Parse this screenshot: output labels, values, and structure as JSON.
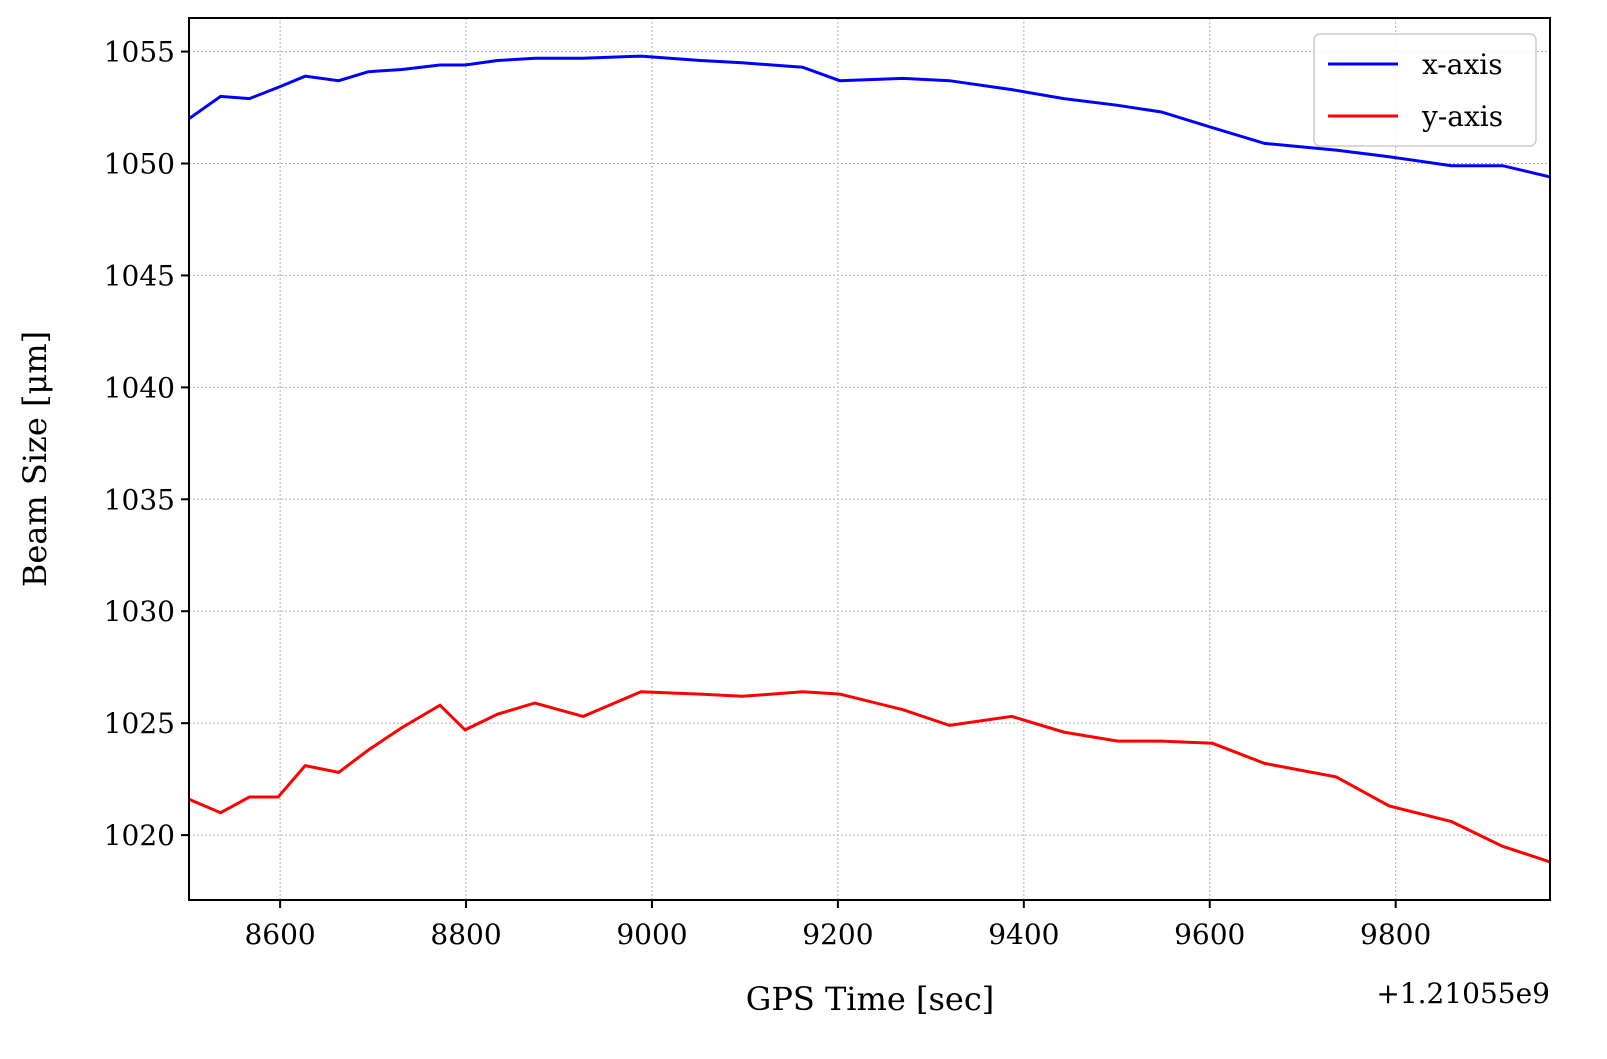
{
  "chart_data": {
    "type": "line",
    "xlabel": "GPS Time [sec]",
    "ylabel": "Beam Size [μm]",
    "x_offset_label": "+1.21055e9",
    "x": [
      8502,
      8536,
      8567,
      8598,
      8627,
      8663,
      8695,
      8731,
      8772,
      8799,
      8834,
      8874,
      8926,
      8988,
      9052,
      9097,
      9162,
      9202,
      9270,
      9320,
      9387,
      9443,
      9501,
      9548,
      9603,
      9659,
      9736,
      9793,
      9860,
      9915,
      9966
    ],
    "series": [
      {
        "name": "x-axis",
        "color": "#0000ff",
        "values": [
          1052.0,
          1053.0,
          1052.9,
          1053.4,
          1053.9,
          1053.7,
          1054.1,
          1054.2,
          1054.4,
          1054.4,
          1054.6,
          1054.7,
          1054.7,
          1054.8,
          1054.6,
          1054.5,
          1054.3,
          1053.7,
          1053.8,
          1053.7,
          1053.3,
          1052.9,
          1052.6,
          1052.3,
          1051.6,
          1050.9,
          1050.6,
          1050.3,
          1049.9,
          1049.9,
          1049.4
        ]
      },
      {
        "name": "y-axis",
        "color": "#ff0000",
        "values": [
          1021.6,
          1021.0,
          1021.7,
          1021.7,
          1023.1,
          1022.8,
          1023.8,
          1024.8,
          1025.8,
          1024.7,
          1025.4,
          1025.9,
          1025.3,
          1026.4,
          1026.3,
          1026.2,
          1026.4,
          1026.3,
          1025.6,
          1024.9,
          1025.3,
          1024.6,
          1024.2,
          1024.2,
          1024.1,
          1023.2,
          1022.6,
          1021.3,
          1020.6,
          1019.5,
          1018.8
        ]
      }
    ],
    "xlim": [
      8502,
      9966
    ],
    "xticks": [
      8600,
      8800,
      9000,
      9200,
      9400,
      9600,
      9800
    ],
    "ylim": [
      1017.1,
      1056.5
    ],
    "yticks": [
      1020,
      1025,
      1030,
      1035,
      1040,
      1045,
      1050,
      1055
    ],
    "grid": true,
    "legend": "upper right"
  }
}
